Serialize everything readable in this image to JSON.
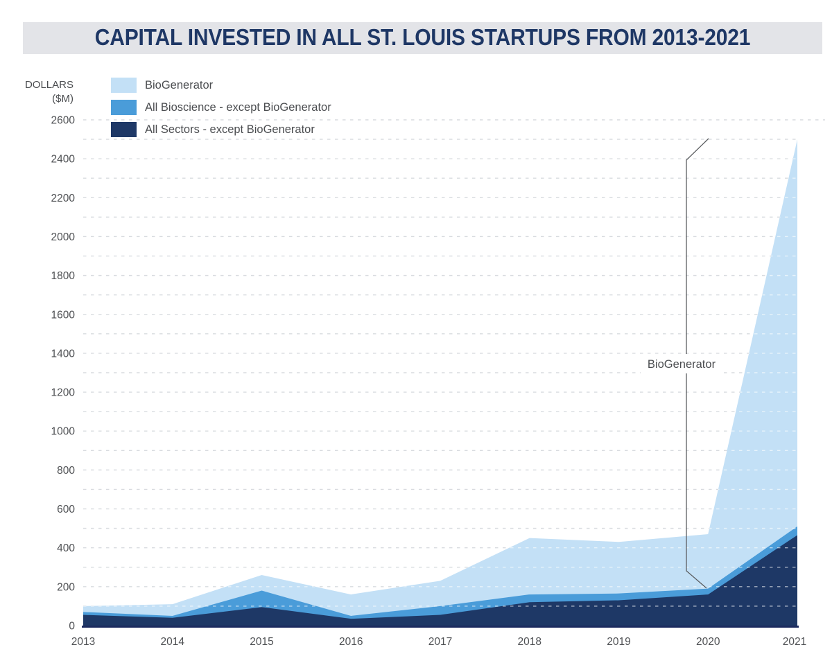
{
  "title": "CAPITAL INVESTED IN ALL ST. LOUIS STARTUPS FROM 2013-2021",
  "legend": {
    "items": [
      {
        "label": "BioGenerator",
        "color": "#C3E0F6"
      },
      {
        "label": "All Bioscience - except BioGenerator",
        "color": "#4A9CD9"
      },
      {
        "label": "All Sectors - except BioGenerator",
        "color": "#1E3866"
      }
    ]
  },
  "chart_data": {
    "type": "area",
    "stacked": true,
    "title": "CAPITAL INVESTED IN ALL ST. LOUIS STARTUPS FROM 2013-2021",
    "ylabel_line1": "DOLLARS",
    "ylabel_line2": "($M)",
    "x": [
      "2013",
      "2014",
      "2015",
      "2016",
      "2017",
      "2018",
      "2019",
      "2020",
      "2021"
    ],
    "series": [
      {
        "name": "All Sectors - except BioGenerator",
        "color": "#1E3866",
        "values": [
          55,
          40,
          95,
          35,
          55,
          120,
          130,
          160,
          465
        ]
      },
      {
        "name": "All Bioscience - except BioGenerator",
        "color": "#4A9CD9",
        "values": [
          15,
          10,
          85,
          15,
          45,
          40,
          35,
          30,
          45
        ]
      },
      {
        "name": "BioGenerator",
        "color": "#C3E0F6",
        "values": [
          30,
          60,
          80,
          110,
          130,
          290,
          265,
          280,
          1990
        ]
      }
    ],
    "stack_order": "first series at bottom",
    "ylim": [
      0,
      2600
    ],
    "y_labeled_ticks": [
      0,
      200,
      400,
      600,
      800,
      1000,
      1200,
      1400,
      1600,
      1800,
      2000,
      2200,
      2400,
      2600
    ],
    "grid_step": 100,
    "grid_style": "dashed",
    "legend_position": "top-left",
    "annotation": {
      "label": "BioGenerator",
      "points_to": "light-blue BioGenerator band between 2020 and 2021"
    }
  }
}
